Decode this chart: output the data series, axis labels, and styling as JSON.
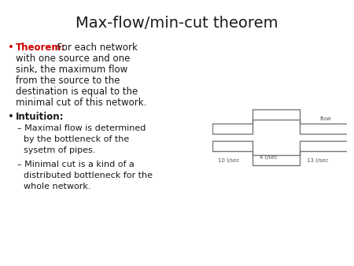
{
  "title": "Max-flow/min-cut theorem",
  "background_color": "#ffffff",
  "title_fontsize": 14,
  "title_color": "#1a1a1a",
  "bullet1_bold": "Theorem:",
  "bullet1_bold_color": "#cc0000",
  "bullet2_bold": "Intuition:",
  "body_fontsize": 8.5,
  "sub_fontsize": 8.0,
  "line_color": "#777777",
  "text_color": "#1a1a1a"
}
